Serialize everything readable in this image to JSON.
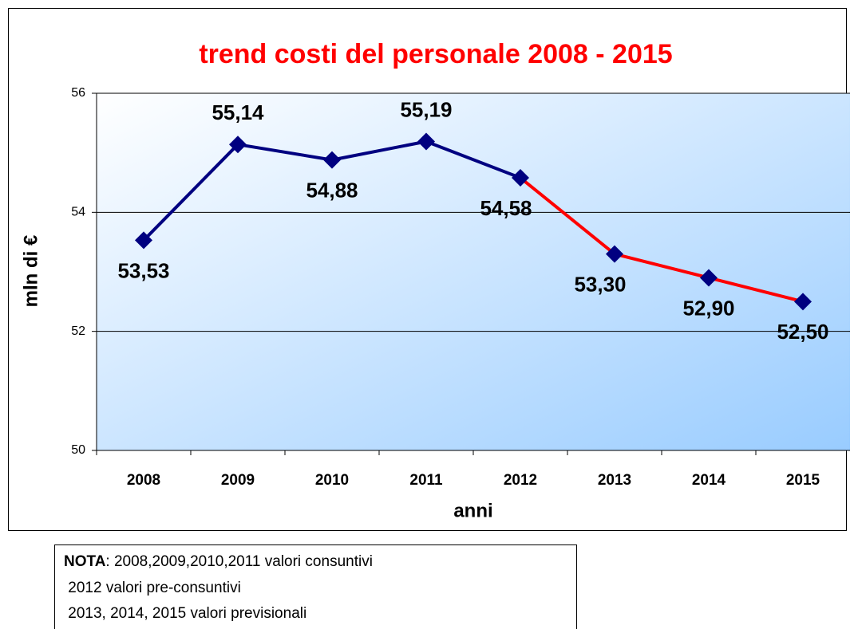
{
  "chart_data": {
    "type": "line",
    "title": "trend costi del personale 2008 - 2015",
    "x_label": "anni",
    "y_label": "mln di €",
    "categories": [
      "2008",
      "2009",
      "2010",
      "2011",
      "2012",
      "2013",
      "2014",
      "2015"
    ],
    "values": [
      53.53,
      55.14,
      54.88,
      55.19,
      54.58,
      53.3,
      52.9,
      52.5
    ],
    "value_labels": [
      "53,53",
      "55,14",
      "54,88",
      "55,19",
      "54,58",
      "53,30",
      "52,90",
      "52,50"
    ],
    "label_positions": [
      "below",
      "above",
      "below",
      "above",
      "below-left",
      "below-left",
      "below",
      "below"
    ],
    "segment_colors": [
      "#000080",
      "#000080",
      "#000080",
      "#000080",
      "#ff0000",
      "#ff0000",
      "#ff0000"
    ],
    "marker_color": "#000080",
    "ylim": [
      50,
      56
    ],
    "yticks": [
      50,
      52,
      54,
      56
    ],
    "grid": true
  },
  "note": {
    "lead": "NOTA",
    "lines": [
      ": 2008,2009,2010,2011 valori consuntivi",
      " 2012 valori pre-consuntivi",
      " 2013, 2014, 2015 valori previsionali"
    ]
  }
}
